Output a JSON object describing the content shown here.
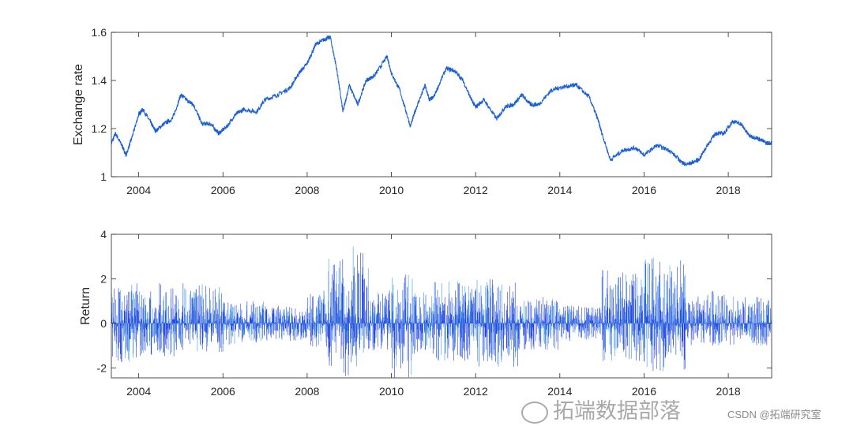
{
  "chart_data": [
    {
      "type": "line",
      "title": "",
      "xlabel": "",
      "ylabel": "Exchange rate",
      "xlim": [
        2003.35,
        2019.03
      ],
      "ylim": [
        1,
        1.6
      ],
      "xticks": [
        "2004",
        "2006",
        "2008",
        "2010",
        "2012",
        "2014",
        "2016",
        "2018"
      ],
      "yticks": [
        "1",
        "1.2",
        "1.4",
        "1.6"
      ],
      "grid": false,
      "color": "#1a5fd6",
      "x": [
        2003.35,
        2003.45,
        2003.6,
        2003.7,
        2003.85,
        2004.0,
        2004.1,
        2004.3,
        2004.4,
        2004.6,
        2004.8,
        2005.0,
        2005.2,
        2005.3,
        2005.5,
        2005.7,
        2005.9,
        2006.1,
        2006.3,
        2006.5,
        2006.8,
        2007.0,
        2007.3,
        2007.6,
        2007.8,
        2008.0,
        2008.2,
        2008.4,
        2008.55,
        2008.7,
        2008.85,
        2009.0,
        2009.2,
        2009.4,
        2009.6,
        2009.9,
        2010.0,
        2010.2,
        2010.45,
        2010.6,
        2010.8,
        2010.9,
        2011.0,
        2011.3,
        2011.5,
        2011.7,
        2011.9,
        2012.0,
        2012.2,
        2012.5,
        2012.7,
        2012.9,
        2013.1,
        2013.3,
        2013.5,
        2013.8,
        2014.0,
        2014.3,
        2014.4,
        2014.7,
        2014.9,
        2015.0,
        2015.2,
        2015.5,
        2015.8,
        2016.0,
        2016.3,
        2016.6,
        2016.9,
        2017.0,
        2017.3,
        2017.5,
        2017.7,
        2017.9,
        2018.1,
        2018.3,
        2018.5,
        2018.7,
        2018.9,
        2019.03
      ],
      "y": [
        1.14,
        1.18,
        1.13,
        1.09,
        1.17,
        1.26,
        1.28,
        1.22,
        1.19,
        1.22,
        1.24,
        1.34,
        1.31,
        1.3,
        1.22,
        1.22,
        1.18,
        1.21,
        1.26,
        1.28,
        1.27,
        1.32,
        1.34,
        1.37,
        1.43,
        1.47,
        1.55,
        1.57,
        1.58,
        1.45,
        1.27,
        1.38,
        1.3,
        1.4,
        1.42,
        1.5,
        1.43,
        1.36,
        1.21,
        1.29,
        1.38,
        1.32,
        1.33,
        1.45,
        1.44,
        1.4,
        1.32,
        1.29,
        1.32,
        1.24,
        1.29,
        1.3,
        1.34,
        1.3,
        1.3,
        1.36,
        1.37,
        1.38,
        1.38,
        1.33,
        1.24,
        1.18,
        1.07,
        1.11,
        1.12,
        1.09,
        1.13,
        1.11,
        1.06,
        1.05,
        1.07,
        1.13,
        1.18,
        1.18,
        1.23,
        1.22,
        1.17,
        1.16,
        1.14,
        1.14
      ]
    },
    {
      "type": "line",
      "title": "",
      "xlabel": "",
      "ylabel": "Return",
      "xlim": [
        2003.35,
        2019.03
      ],
      "ylim": [
        -2.45,
        4
      ],
      "xticks": [
        "2004",
        "2006",
        "2008",
        "2010",
        "2012",
        "2014",
        "2016",
        "2018"
      ],
      "yticks": [
        "-2",
        "0",
        "2",
        "4"
      ],
      "grid": false,
      "colors": [
        "#1f3fe0",
        "#3a9ae0"
      ],
      "period_start": [
        2003.35,
        2004,
        2005,
        2006,
        2007,
        2008,
        2008.5,
        2009,
        2009.5,
        2010,
        2010.5,
        2011,
        2012,
        2013,
        2014,
        2015,
        2016,
        2017,
        2018
      ],
      "period_min": [
        -1.8,
        -1.5,
        -1.3,
        -1.0,
        -0.8,
        -1.2,
        -2.4,
        -2.0,
        -1.3,
        -2.5,
        -1.5,
        -1.7,
        -2.0,
        -1.2,
        -0.8,
        -1.7,
        -2.3,
        -1.0,
        -1.0
      ],
      "period_max": [
        1.8,
        1.8,
        1.8,
        1.0,
        0.8,
        1.5,
        2.9,
        3.5,
        1.5,
        2.2,
        1.5,
        1.9,
        2.0,
        1.2,
        0.8,
        2.5,
        3.0,
        1.5,
        1.2
      ]
    }
  ],
  "watermark": {
    "line1": "拓端数据部落",
    "line2": "CSDN @拓端研究室"
  }
}
